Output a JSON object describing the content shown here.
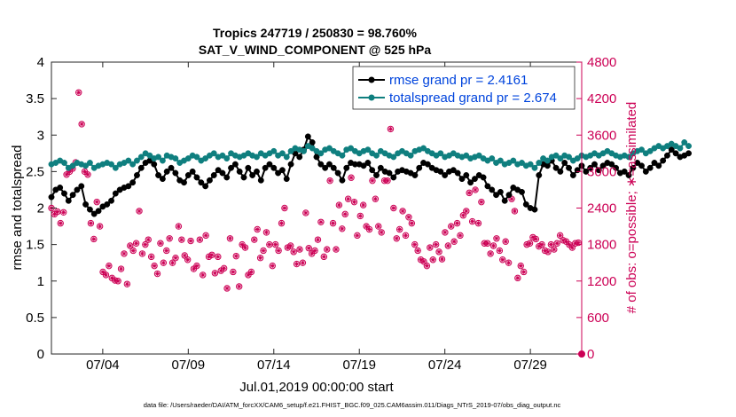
{
  "chart_data": {
    "type": "line",
    "title": "Tropics 247719 / 250830 = 98.760%",
    "subtitle": "SAT_V_WIND_COMPONENT @ 525 hPa",
    "xlabel": "Jul.01,2019 00:00:00 start",
    "ylabel": "rmse and totalspread",
    "y2label": "# of obs: o=possible; ∗=assimilated",
    "footnote": "data file: /Users/raeder/DAI/ATM_forcXX/CAM6_setup/f.e21.FHIST_BGC.f09_025.CAM6assim.011/Diags_NTrS_2019-07/obs_diag_output.nc",
    "x_range": [
      1.0,
      32.0
    ],
    "x_ticks": [
      4,
      9,
      14,
      19,
      24,
      29
    ],
    "x_tick_labels": [
      "07/04",
      "07/09",
      "07/14",
      "07/19",
      "07/24",
      "07/29"
    ],
    "ylim": [
      0,
      4
    ],
    "y_ticks": [
      "0",
      "0.5",
      "1",
      "1.5",
      "2",
      "2.5",
      "3",
      "3.5",
      "4"
    ],
    "y2lim": [
      0,
      4800
    ],
    "y2_ticks": [
      "0",
      "600",
      "1200",
      "1800",
      "2400",
      "3000",
      "3600",
      "4200",
      "4800"
    ],
    "legend": {
      "position": "top-right",
      "entries": [
        "rmse grand pr = 2.4161",
        "totalspread grand pr = 2.674"
      ]
    },
    "colors": {
      "rmse": "#000000",
      "totalspread": "#0f7f7f",
      "obs": "#cc0055",
      "legend_text": "#0044dd"
    },
    "x_start": 1.0,
    "x_step": 0.25,
    "series": [
      {
        "name": "rmse",
        "axis": "left",
        "values": [
          2.15,
          2.25,
          2.28,
          2.2,
          2.1,
          2.18,
          2.25,
          2.3,
          2.05,
          1.98,
          1.92,
          1.96,
          2.02,
          2.05,
          2.1,
          2.2,
          2.25,
          2.28,
          2.3,
          2.35,
          2.45,
          2.55,
          2.62,
          2.65,
          2.6,
          2.45,
          2.4,
          2.5,
          2.55,
          2.48,
          2.38,
          2.35,
          2.45,
          2.5,
          2.42,
          2.35,
          2.3,
          2.38,
          2.45,
          2.52,
          2.48,
          2.42,
          2.55,
          2.6,
          2.5,
          2.42,
          2.55,
          2.45,
          2.5,
          2.38,
          2.55,
          2.6,
          2.55,
          2.48,
          2.52,
          2.4,
          2.6,
          2.75,
          2.7,
          2.8,
          2.98,
          2.9,
          2.7,
          2.6,
          2.55,
          2.6,
          2.55,
          2.48,
          2.38,
          2.55,
          2.62,
          2.6,
          2.6,
          2.58,
          2.62,
          2.52,
          2.45,
          2.55,
          2.5,
          2.48,
          2.42,
          2.5,
          2.52,
          2.5,
          2.48,
          2.45,
          2.55,
          2.62,
          2.6,
          2.55,
          2.52,
          2.5,
          2.45,
          2.5,
          2.52,
          2.48,
          2.4,
          2.45,
          2.35,
          2.4,
          2.45,
          2.42,
          2.3,
          2.25,
          2.18,
          2.22,
          2.1,
          2.18,
          2.28,
          2.25,
          2.22,
          2.05,
          2.0,
          1.98,
          2.45,
          2.6,
          2.58,
          2.65,
          2.55,
          2.5,
          2.62,
          2.55,
          2.45,
          2.52,
          2.58,
          2.5,
          2.55,
          2.6,
          2.52,
          2.58,
          2.62,
          2.6,
          2.55,
          2.48,
          2.5,
          2.45,
          2.55,
          2.62,
          2.58,
          2.5,
          2.55,
          2.62,
          2.58,
          2.65,
          2.72,
          2.8,
          2.75,
          2.7,
          2.72,
          2.75
        ]
      },
      {
        "name": "totalspread",
        "axis": "left",
        "values": [
          2.6,
          2.62,
          2.65,
          2.62,
          2.55,
          2.58,
          2.62,
          2.6,
          2.58,
          2.62,
          2.55,
          2.58,
          2.6,
          2.62,
          2.6,
          2.55,
          2.6,
          2.62,
          2.65,
          2.6,
          2.65,
          2.7,
          2.75,
          2.72,
          2.68,
          2.7,
          2.65,
          2.72,
          2.7,
          2.68,
          2.62,
          2.65,
          2.68,
          2.72,
          2.7,
          2.65,
          2.68,
          2.72,
          2.75,
          2.7,
          2.72,
          2.68,
          2.75,
          2.72,
          2.7,
          2.72,
          2.75,
          2.72,
          2.7,
          2.75,
          2.72,
          2.75,
          2.78,
          2.72,
          2.75,
          2.7,
          2.78,
          2.82,
          2.8,
          2.78,
          2.85,
          2.82,
          2.78,
          2.75,
          2.8,
          2.82,
          2.78,
          2.75,
          2.72,
          2.8,
          2.82,
          2.78,
          2.75,
          2.78,
          2.8,
          2.75,
          2.72,
          2.78,
          2.75,
          2.72,
          2.7,
          2.75,
          2.78,
          2.75,
          2.72,
          2.78,
          2.8,
          2.82,
          2.78,
          2.75,
          2.72,
          2.75,
          2.7,
          2.72,
          2.75,
          2.72,
          2.7,
          2.72,
          2.68,
          2.7,
          2.72,
          2.68,
          2.65,
          2.68,
          2.62,
          2.65,
          2.6,
          2.62,
          2.65,
          2.6,
          2.62,
          2.58,
          2.6,
          2.55,
          2.62,
          2.68,
          2.65,
          2.7,
          2.72,
          2.68,
          2.72,
          2.7,
          2.65,
          2.68,
          2.72,
          2.7,
          2.72,
          2.75,
          2.72,
          2.75,
          2.78,
          2.75,
          2.72,
          2.7,
          2.72,
          2.7,
          2.75,
          2.78,
          2.8,
          2.75,
          2.78,
          2.82,
          2.85,
          2.82,
          2.85,
          2.88,
          2.85,
          2.82,
          2.9,
          2.85
        ]
      },
      {
        "name": "obs_possible",
        "axis": "right",
        "values": [
          2400,
          2300,
          2340,
          2150,
          2330,
          2950,
          3000,
          3050,
          3150,
          4300,
          3780,
          3000,
          2950,
          2150,
          1890,
          2500,
          2100,
          1350,
          1300,
          1450,
          1250,
          1210,
          1200,
          1400,
          1650,
          1150,
          1780,
          1700,
          1820,
          2350,
          1650,
          1800,
          1880,
          1600,
          1450,
          1320,
          1820,
          1500,
          1700,
          1900,
          1500,
          1580,
          2100,
          1880,
          1620,
          1550,
          1860,
          1400,
          1450,
          1880,
          1300,
          1950,
          1600,
          1630,
          1330,
          1600,
          1370,
          1410,
          1080,
          1900,
          1350,
          1610,
          1110,
          1800,
          1750,
          1300,
          1350,
          1880,
          2050,
          1580,
          1700,
          2000,
          1800,
          1450,
          1800,
          1700,
          2150,
          2400,
          1750,
          1780,
          1680,
          1480,
          1720,
          1500,
          2320,
          1740,
          1650,
          1700,
          1880,
          2170,
          1600,
          1720,
          2850,
          2150,
          1720,
          2450,
          2060,
          2300,
          2550,
          2900,
          2500,
          1950,
          2270,
          2450,
          2100,
          2050,
          2850,
          2550,
          2100,
          2000,
          2850,
          2850,
          3700,
          2400,
          1900,
          2050,
          2350,
          1950,
          2250,
          2150,
          1800,
          1700,
          1550,
          1520,
          1450,
          1750,
          1550,
          1800,
          1680,
          1560,
          2000,
          1780,
          2100,
          1850,
          2150,
          1950,
          2280,
          2350,
          2650,
          2180,
          2700,
          2150,
          2500,
          1820,
          1820,
          1650,
          1780,
          1900,
          1700,
          1550,
          1850,
          1500,
          2550,
          2350,
          1250,
          1450,
          1350,
          1800,
          1820,
          1920,
          1890,
          1770,
          1800,
          1700,
          1680,
          1800,
          1720,
          1820,
          1950,
          1870,
          1850,
          1800,
          1750,
          1820,
          1830
        ]
      }
    ],
    "last_obs_point": {
      "x": 32.0,
      "y2": 0
    }
  }
}
